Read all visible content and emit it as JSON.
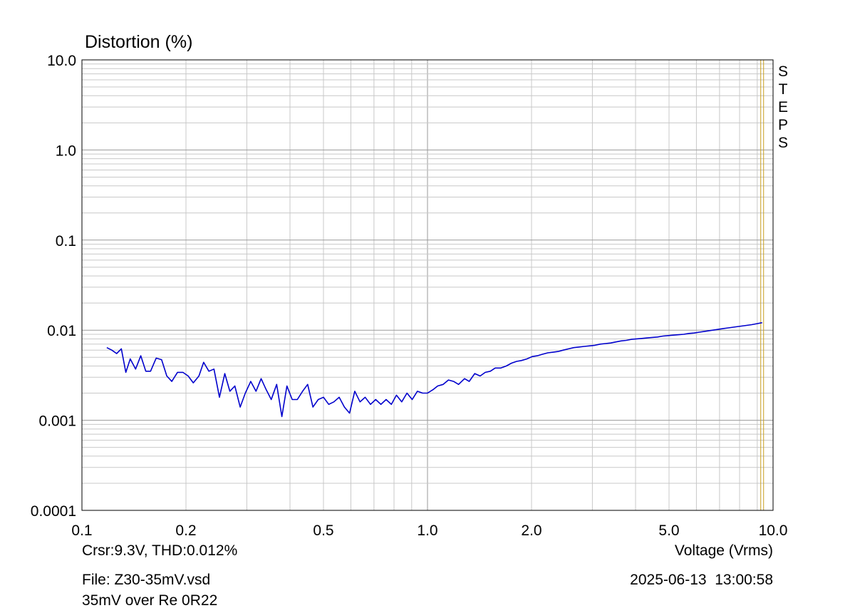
{
  "colors": {
    "trace": "#0000cc",
    "grid_minor": "#c8c8c8",
    "grid_major": "#9a9a9a",
    "cursor": "#c8a020",
    "frame": "#000000"
  },
  "footer": {
    "cursor_readout": "Crsr:9.3V, THD:0.012%",
    "file": "File: Z30-35mV.vsd",
    "description": "35mV over Re 0R22",
    "date": "2025-06-13",
    "time": "13:00:58"
  },
  "marker": {
    "letters": [
      "S",
      "T",
      "E",
      "P",
      "S"
    ]
  },
  "chart_data": {
    "type": "line",
    "title": "Distortion (%)",
    "xlabel": "Voltage (Vrms)",
    "ylabel": "Distortion (%)",
    "xscale": "log",
    "yscale": "log",
    "xlim": [
      0.1,
      10.0
    ],
    "ylim": [
      0.0001,
      10.0
    ],
    "xticks": [
      {
        "value": 0.1,
        "label": "0.1"
      },
      {
        "value": 0.2,
        "label": "0.2"
      },
      {
        "value": 0.5,
        "label": "0.5"
      },
      {
        "value": 1.0,
        "label": "1.0"
      },
      {
        "value": 2.0,
        "label": "2.0"
      },
      {
        "value": 5.0,
        "label": "5.0"
      },
      {
        "value": 10.0,
        "label": "10.0"
      }
    ],
    "yticks": [
      {
        "value": 10.0,
        "label": "10.0"
      },
      {
        "value": 1.0,
        "label": "1.0"
      },
      {
        "value": 0.1,
        "label": "0.1"
      },
      {
        "value": 0.01,
        "label": "0.01"
      },
      {
        "value": 0.001,
        "label": "0.001"
      },
      {
        "value": 0.0001,
        "label": "0.0001"
      }
    ],
    "grid": true,
    "cursor_x": 9.3,
    "series": [
      {
        "name": "THD",
        "x": [
          0.118,
          0.122,
          0.126,
          0.13,
          0.134,
          0.138,
          0.143,
          0.148,
          0.153,
          0.158,
          0.164,
          0.17,
          0.176,
          0.182,
          0.189,
          0.196,
          0.203,
          0.21,
          0.218,
          0.225,
          0.233,
          0.241,
          0.25,
          0.259,
          0.268,
          0.277,
          0.287,
          0.297,
          0.308,
          0.319,
          0.33,
          0.341,
          0.353,
          0.366,
          0.379,
          0.392,
          0.406,
          0.42,
          0.435,
          0.45,
          0.466,
          0.483,
          0.5,
          0.518,
          0.536,
          0.555,
          0.575,
          0.595,
          0.616,
          0.638,
          0.66,
          0.684,
          0.708,
          0.733,
          0.759,
          0.786,
          0.813,
          0.842,
          0.872,
          0.903,
          0.935,
          0.968,
          1.0,
          1.04,
          1.07,
          1.11,
          1.15,
          1.19,
          1.23,
          1.28,
          1.32,
          1.37,
          1.42,
          1.47,
          1.52,
          1.57,
          1.63,
          1.69,
          1.75,
          1.81,
          1.87,
          1.94,
          2.01,
          2.08,
          2.15,
          2.23,
          2.31,
          2.39,
          2.47,
          2.56,
          2.65,
          2.75,
          2.84,
          2.95,
          3.05,
          3.16,
          3.27,
          3.39,
          3.51,
          3.63,
          3.76,
          3.89,
          4.03,
          4.17,
          4.32,
          4.47,
          4.63,
          4.8,
          4.97,
          5.14,
          5.33,
          5.51,
          5.71,
          5.91,
          6.12,
          6.34,
          6.56,
          6.8,
          7.04,
          7.29,
          7.55,
          7.81,
          8.09,
          8.38,
          8.67,
          8.98,
          9.3
        ],
        "y": [
          0.0064,
          0.006,
          0.0055,
          0.0062,
          0.0034,
          0.0048,
          0.0037,
          0.0052,
          0.0035,
          0.0035,
          0.0049,
          0.0047,
          0.0031,
          0.0027,
          0.0034,
          0.0034,
          0.0031,
          0.0026,
          0.0031,
          0.0044,
          0.0035,
          0.0037,
          0.0018,
          0.0033,
          0.0021,
          0.0024,
          0.0014,
          0.002,
          0.0027,
          0.0021,
          0.0029,
          0.0022,
          0.0017,
          0.0025,
          0.0011,
          0.0024,
          0.0017,
          0.0017,
          0.0021,
          0.0025,
          0.0014,
          0.0017,
          0.0018,
          0.0015,
          0.0016,
          0.0018,
          0.0014,
          0.0012,
          0.0021,
          0.0016,
          0.0018,
          0.0015,
          0.0017,
          0.0015,
          0.0017,
          0.0015,
          0.0019,
          0.0016,
          0.002,
          0.0017,
          0.0021,
          0.002,
          0.002,
          0.0022,
          0.0024,
          0.0025,
          0.0028,
          0.0027,
          0.0025,
          0.0029,
          0.0027,
          0.0033,
          0.0031,
          0.0034,
          0.0035,
          0.0038,
          0.0038,
          0.004,
          0.0043,
          0.0045,
          0.0046,
          0.0048,
          0.0051,
          0.0052,
          0.0054,
          0.0056,
          0.0057,
          0.0058,
          0.006,
          0.0062,
          0.0064,
          0.0065,
          0.0066,
          0.0067,
          0.0068,
          0.007,
          0.0071,
          0.0072,
          0.0074,
          0.0076,
          0.0077,
          0.0079,
          0.008,
          0.0081,
          0.0082,
          0.0083,
          0.0084,
          0.0086,
          0.0087,
          0.0088,
          0.0089,
          0.009,
          0.0092,
          0.0093,
          0.0095,
          0.0097,
          0.0099,
          0.0101,
          0.0103,
          0.0105,
          0.0107,
          0.0109,
          0.0111,
          0.0113,
          0.0115,
          0.0118,
          0.0121
        ]
      }
    ]
  }
}
